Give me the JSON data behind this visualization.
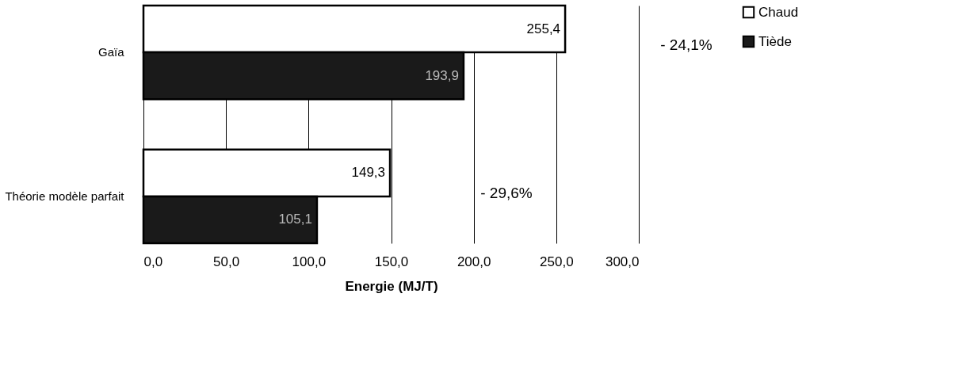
{
  "chart_data": {
    "type": "bar",
    "orientation": "horizontal",
    "categories": [
      "Gaïa",
      "Théorie modèle parfait"
    ],
    "series": [
      {
        "name": "Chaud",
        "color": "#ffffff",
        "values": [
          255.4,
          149.3
        ],
        "value_labels": [
          "255,4",
          "149,3"
        ]
      },
      {
        "name": "Tiède",
        "color": "#1a1a1a",
        "values": [
          193.9,
          105.1
        ],
        "value_labels": [
          "193,9",
          "105,1"
        ]
      }
    ],
    "xlabel": "Energie (MJ/T)",
    "xlim": [
      0,
      300
    ],
    "xticks": [
      {
        "value": 0,
        "label": "0,0"
      },
      {
        "value": 50,
        "label": "50,0"
      },
      {
        "value": 100,
        "label": "100,0"
      },
      {
        "value": 150,
        "label": "150,0"
      },
      {
        "value": 200,
        "label": "200,0"
      },
      {
        "value": 250,
        "label": "250,0"
      },
      {
        "value": 300,
        "label": "300,0"
      }
    ],
    "grid": "x",
    "legend": "right",
    "annotations": [
      "- 24,1%",
      "- 29,6%"
    ]
  }
}
